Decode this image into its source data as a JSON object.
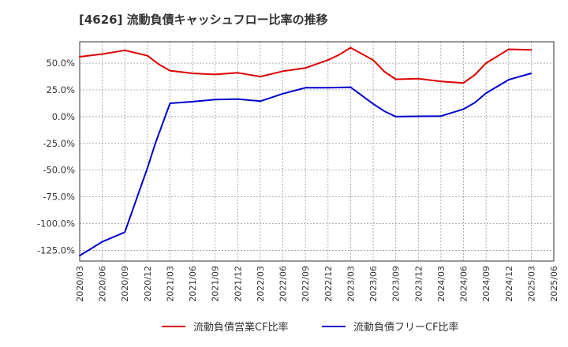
{
  "chart_data": {
    "type": "line",
    "title": "[4626]  流動負債キャッシュフロー比率の推移",
    "xlabel": "",
    "ylabel": "",
    "ylim": [
      -135,
      70
    ],
    "yticks": [
      50,
      25,
      0,
      -25,
      -50,
      -75,
      -100,
      -125
    ],
    "ytick_labels": [
      "50.0%",
      "25.0%",
      "0.0%",
      "-25.0%",
      "-50.0%",
      "-75.0%",
      "-100.0%",
      "-125.0%"
    ],
    "xticks": [
      "2020/03",
      "2020/06",
      "2020/09",
      "2020/12",
      "2021/03",
      "2021/06",
      "2021/09",
      "2021/12",
      "2022/03",
      "2022/06",
      "2022/09",
      "2022/12",
      "2023/03",
      "2023/06",
      "2023/09",
      "2023/12",
      "2024/03",
      "2024/06",
      "2024/09",
      "2024/12",
      "2025/03",
      "2025/06"
    ],
    "grid": true,
    "legend_position": "bottom",
    "series": [
      {
        "name": "流動負債営業CF比率",
        "color": "#dd0000",
        "values": [
          [
            0,
            56
          ],
          [
            1,
            58.5
          ],
          [
            2,
            62
          ],
          [
            3,
            57
          ],
          [
            3.5,
            49
          ],
          [
            4,
            43
          ],
          [
            5,
            40.5
          ],
          [
            6,
            39.5
          ],
          [
            7,
            41
          ],
          [
            8,
            37.5
          ],
          [
            9,
            42.5
          ],
          [
            10,
            45.5
          ],
          [
            11,
            53
          ],
          [
            11.5,
            58
          ],
          [
            12,
            64.5
          ],
          [
            13,
            53
          ],
          [
            13.5,
            42
          ],
          [
            14,
            35
          ],
          [
            15,
            35.5
          ],
          [
            16,
            33
          ],
          [
            17,
            31.5
          ],
          [
            17.5,
            39
          ],
          [
            18,
            50
          ],
          [
            19,
            63
          ],
          [
            20,
            62.5
          ]
        ]
      },
      {
        "name": "流動負債フリーCF比率",
        "color": "#0000cc",
        "values": [
          [
            0,
            -130
          ],
          [
            1,
            -117
          ],
          [
            2,
            -108
          ],
          [
            3,
            -48
          ],
          [
            3.35,
            -25
          ],
          [
            4,
            12.5
          ],
          [
            5,
            14
          ],
          [
            6,
            16
          ],
          [
            7,
            16.5
          ],
          [
            8,
            14.5
          ],
          [
            9,
            21.5
          ],
          [
            10,
            27
          ],
          [
            11,
            27
          ],
          [
            12,
            27.5
          ],
          [
            13,
            12
          ],
          [
            13.5,
            5
          ],
          [
            14,
            0
          ],
          [
            15,
            0.3
          ],
          [
            16,
            0.5
          ],
          [
            17,
            7
          ],
          [
            17.5,
            13
          ],
          [
            18,
            22
          ],
          [
            19,
            34.5
          ],
          [
            20,
            40.5
          ]
        ]
      }
    ]
  }
}
